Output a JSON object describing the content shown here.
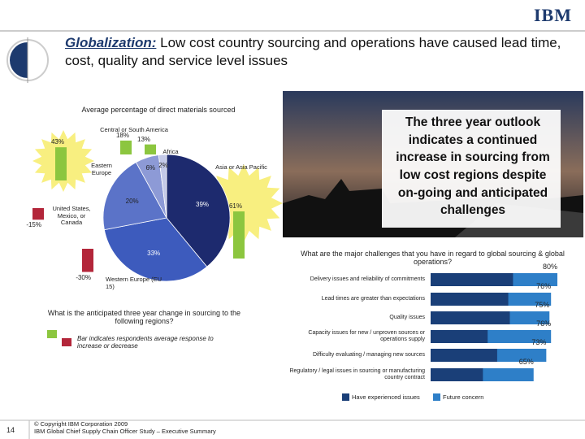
{
  "header": {
    "logo": "IBM",
    "title_lead": "Globalization:",
    "title_rest": " Low cost country sourcing and operations have caused lead time, cost, quality and service level issues"
  },
  "callout": "The three year outlook indicates a continued increase in sourcing from low cost regions despite on-going and anticipated challenges",
  "chart_data": [
    {
      "type": "pie",
      "subtitle": "Average percentage of direct materials sourced",
      "categories": [
        "Asia or Asia Pacific",
        "Western Europe (EU 15)",
        "United States, Mexico, or Canada",
        "Eastern Europe",
        "Central or South America",
        "Africa"
      ],
      "values": [
        39,
        33,
        20,
        6,
        2,
        null
      ],
      "value_labels": [
        "39%",
        "33%",
        "20%",
        "6%",
        "2%",
        null
      ],
      "colors": [
        "#1d2a6e",
        "#3d5bbd",
        "#5b73c8",
        "#8d9ad6",
        "#c3c9e8",
        "#e0e3f2"
      ],
      "change_values": [
        61,
        -30,
        -15,
        43,
        18,
        13
      ],
      "change_labels": [
        "61%",
        "-30%",
        "-15%",
        "43%",
        "18%",
        "13%"
      ],
      "increase_color": "#8cc63f",
      "decrease_color": "#b3263a",
      "change_title": "What is the anticipated three year change in sourcing to the following regions?",
      "change_legend": "Bar indicates respondents average response to increase or decrease"
    },
    {
      "type": "bar",
      "orientation": "horizontal",
      "title": "What are the major challenges that you have in regard to global sourcing & global operations?",
      "categories": [
        "Delivery issues and reliability of commitments",
        "Lead times are greater than expectations",
        "Quality issues",
        "Capacity issues for new / unproven sources or operations supply",
        "Difficulty evaluating / managing new sources",
        "Regulatory / legal issues in sourcing or manufacturing country contract"
      ],
      "xlim": [
        0,
        80
      ],
      "series": [
        {
          "name": "Future concern",
          "color": "#2e7fc8",
          "values": [
            80,
            76,
            75,
            76,
            73,
            65
          ],
          "value_labels": [
            "80%",
            "76%",
            "75%",
            "76%",
            "73%",
            "65%"
          ]
        },
        {
          "name": "Have experienced issues",
          "color": "#1a3f78",
          "values": [
            52,
            49,
            50,
            36,
            42,
            33
          ]
        }
      ]
    }
  ],
  "footer": {
    "page": "14",
    "copyright": "© Copyright IBM Corporation 2009",
    "study": "IBM Global Chief Supply Chain Officer Study – Executive Summary"
  }
}
